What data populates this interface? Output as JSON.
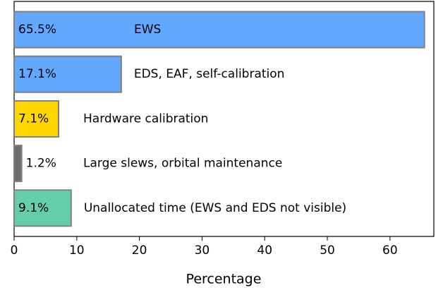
{
  "chart_data": {
    "type": "barh",
    "categories": [
      "EWS",
      "EDS, EAF, self-calibration",
      "Hardware calibration",
      "Large slews, orbital maintenance",
      "Unallocated time (EWS and EDS not visible)"
    ],
    "values": [
      65.5,
      17.1,
      7.1,
      1.2,
      9.1
    ],
    "value_labels": [
      "65.5%",
      "17.1%",
      "7.1%",
      "1.2%",
      "9.1%"
    ],
    "colors": [
      "#62a8ff",
      "#62a8ff",
      "#ffd700",
      "#6e6e6e",
      "#66cdaa"
    ],
    "xlabel": "Percentage",
    "xlim": [
      0,
      67
    ],
    "xticks": [
      0,
      10,
      20,
      30,
      40,
      50,
      60
    ],
    "grid": false
  }
}
